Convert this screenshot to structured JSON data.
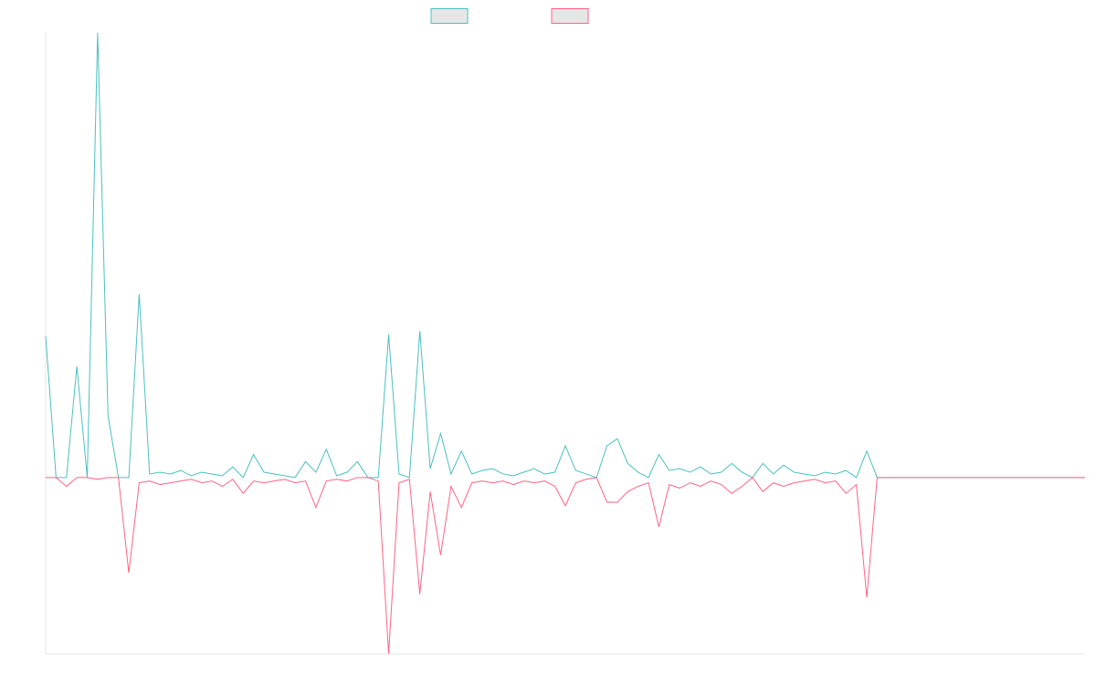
{
  "chart_data": {
    "type": "line",
    "categories": [
      null,
      null,
      null,
      null,
      null,
      null,
      null,
      null,
      null,
      null,
      null,
      null,
      null,
      null,
      null,
      null,
      null,
      null,
      null,
      null,
      null,
      null,
      null,
      null,
      null,
      null,
      null,
      null,
      null,
      null,
      null,
      null,
      null,
      null,
      null,
      null,
      null,
      null,
      null,
      null,
      null,
      null,
      null,
      null,
      null,
      null,
      null,
      null,
      null,
      null,
      null,
      null,
      null,
      null,
      null,
      null,
      null,
      null,
      null,
      null,
      null,
      null,
      null,
      null,
      null,
      null,
      null,
      null,
      null,
      null,
      null,
      null,
      null,
      null,
      null,
      null,
      null,
      null,
      null,
      null,
      null,
      null,
      null,
      null,
      null,
      null,
      null,
      null,
      null,
      null,
      null,
      null,
      null,
      null,
      null,
      null,
      null,
      null,
      null,
      null,
      null
    ],
    "series": [
      {
        "color": "#4bc0c0",
        "values": [
          80,
          0,
          0,
          63,
          0,
          252,
          35,
          0,
          0,
          104,
          2,
          3,
          2,
          4,
          1,
          3,
          2,
          1,
          6,
          0,
          13,
          3,
          2,
          1,
          0,
          9,
          3,
          16,
          1,
          3,
          9,
          0,
          0,
          81,
          2,
          0,
          83,
          5,
          25,
          2,
          15,
          2,
          4,
          5,
          2,
          1,
          3,
          5,
          2,
          3,
          18,
          4,
          2,
          0,
          18,
          22,
          8,
          3,
          0,
          13,
          4,
          5,
          3,
          6,
          2,
          3,
          8,
          3,
          0,
          8,
          2,
          7,
          3,
          2,
          1,
          3,
          2,
          4,
          0,
          15,
          0,
          0,
          0,
          0,
          0,
          0,
          0,
          0,
          0,
          0,
          0,
          0,
          0,
          0,
          0,
          0,
          0,
          0,
          0,
          0,
          0
        ]
      },
      {
        "color": "#ff6384",
        "values": [
          0,
          0,
          -5,
          0,
          0,
          -1,
          0,
          0,
          -54,
          -3,
          -2,
          -4,
          -3,
          -2,
          -1,
          -3,
          -2,
          -5,
          -1,
          -9,
          -2,
          -3,
          -2,
          -1,
          -3,
          -2,
          -17,
          -2,
          -1,
          -2,
          0,
          0,
          -2,
          -100,
          -3,
          -1,
          -66,
          -8,
          -44,
          -5,
          -17,
          -3,
          -2,
          -3,
          -2,
          -4,
          -2,
          -3,
          -2,
          -5,
          -16,
          -3,
          -1,
          0,
          -14,
          -14,
          -8,
          -5,
          -3,
          -28,
          -4,
          -6,
          -3,
          -5,
          -2,
          -4,
          -9,
          -5,
          0,
          -8,
          -3,
          -5,
          -3,
          -2,
          -1,
          -3,
          -2,
          -9,
          -4,
          -68,
          0,
          0,
          0,
          0,
          0,
          0,
          0,
          0,
          0,
          0,
          0,
          0,
          0,
          0,
          0,
          0,
          0,
          0,
          0,
          0,
          0
        ]
      }
    ],
    "ylim": [
      -100,
      252
    ]
  }
}
